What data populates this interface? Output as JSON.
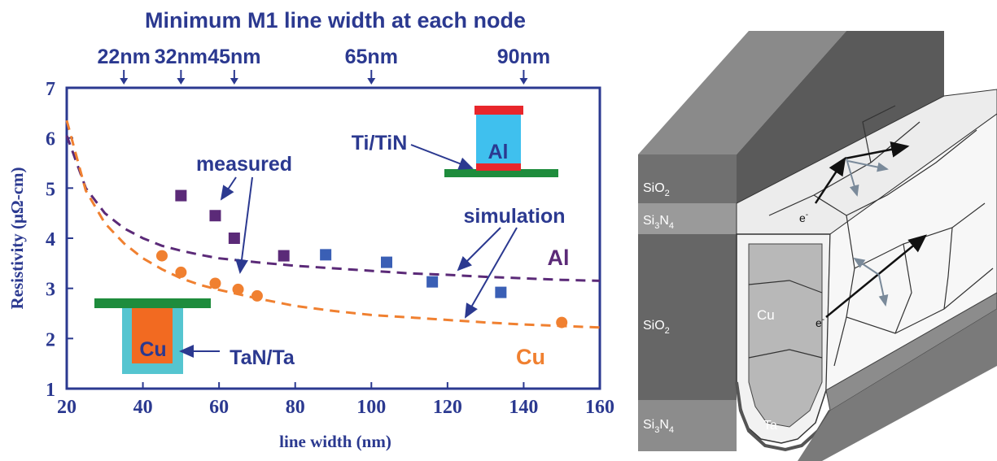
{
  "top_axis": {
    "title": "Minimum M1 line width at each node",
    "nodes": [
      {
        "label": "22nm",
        "x": 35
      },
      {
        "label": "32nm",
        "x": 50
      },
      {
        "label": "45nm",
        "x": 64
      },
      {
        "label": "65nm",
        "x": 100
      },
      {
        "label": "90nm",
        "x": 140
      }
    ]
  },
  "chart_data": {
    "type": "scatter",
    "title": "",
    "xlabel": "line width (nm)",
    "ylabel": "Resistivity (μΩ-cm)",
    "xlim": [
      20,
      160
    ],
    "ylim": [
      1,
      7
    ],
    "xticks": [
      20,
      40,
      60,
      80,
      100,
      120,
      140,
      160
    ],
    "yticks": [
      1,
      2,
      3,
      4,
      5,
      6,
      7
    ],
    "grid": false,
    "series": [
      {
        "name": "Al",
        "kind": "measured",
        "color": "#5b2a78",
        "points": [
          [
            50,
            4.85
          ],
          [
            59,
            4.45
          ],
          [
            64,
            4.0
          ],
          [
            77,
            3.65
          ]
        ]
      },
      {
        "name": "Al",
        "kind": "measured",
        "color": "#3a5fb5",
        "points": [
          [
            88,
            3.67
          ],
          [
            104,
            3.52
          ],
          [
            116,
            3.13
          ],
          [
            134,
            2.92
          ]
        ]
      },
      {
        "name": "Cu",
        "kind": "measured",
        "color": "#f08030",
        "points": [
          [
            45,
            3.65
          ],
          [
            50,
            3.32
          ],
          [
            59,
            3.1
          ],
          [
            65,
            2.98
          ],
          [
            70,
            2.85
          ],
          [
            150,
            2.32
          ]
        ]
      },
      {
        "name": "Al",
        "kind": "simulation",
        "color": "#5b2a78",
        "x": [
          20,
          25,
          30,
          35,
          40,
          45,
          50,
          55,
          60,
          70,
          80,
          90,
          100,
          110,
          120,
          130,
          140,
          150,
          160
        ],
        "y": [
          6.05,
          5.0,
          4.5,
          4.2,
          4.0,
          3.85,
          3.75,
          3.67,
          3.6,
          3.52,
          3.45,
          3.4,
          3.35,
          3.3,
          3.27,
          3.23,
          3.2,
          3.17,
          3.15
        ]
      },
      {
        "name": "Cu",
        "kind": "simulation",
        "color": "#f08030",
        "x": [
          20,
          25,
          30,
          35,
          40,
          45,
          50,
          55,
          60,
          70,
          80,
          90,
          100,
          110,
          120,
          130,
          140,
          150,
          160
        ],
        "y": [
          6.35,
          4.95,
          4.3,
          3.9,
          3.6,
          3.38,
          3.2,
          3.07,
          2.97,
          2.8,
          2.65,
          2.55,
          2.47,
          2.42,
          2.37,
          2.32,
          2.28,
          2.25,
          2.22
        ]
      }
    ]
  },
  "annotations": {
    "measured": "measured",
    "simulation": "simulation",
    "al_label": "Al",
    "cu_label": "Cu",
    "ti_tin": "Ti/TiN",
    "tan_ta": "TaN/Ta",
    "inset_al": "Al",
    "inset_cu": "Cu"
  },
  "colors": {
    "axis_blue": "#2b3990",
    "al_purple": "#5b2a78",
    "cu_orange": "#f08030",
    "measured_blue": "#3a5fb5",
    "liner_red": "#e8262b",
    "green_bar": "#1e8c3c",
    "al_fill": "#3fc0ee",
    "cu_fill": "#f26a21",
    "cu_liner": "#55c5d0"
  },
  "structure": {
    "layers": {
      "sio2_top": "SiO",
      "sio2_top_sub": "2",
      "si3n4_top_a": "Si",
      "si3n4_top_sub1": "3",
      "si3n4_top_b": "N",
      "si3n4_top_sub2": "4",
      "sio2_mid": "SiO",
      "sio2_mid_sub": "2",
      "si3n4_bot_a": "Si",
      "si3n4_bot_sub1": "3",
      "si3n4_bot_b": "N",
      "si3n4_bot_sub2": "4"
    },
    "cu": "Cu",
    "ta": "Ta",
    "electron_1": "e",
    "electron_2": "e",
    "electron_sup": "-"
  }
}
